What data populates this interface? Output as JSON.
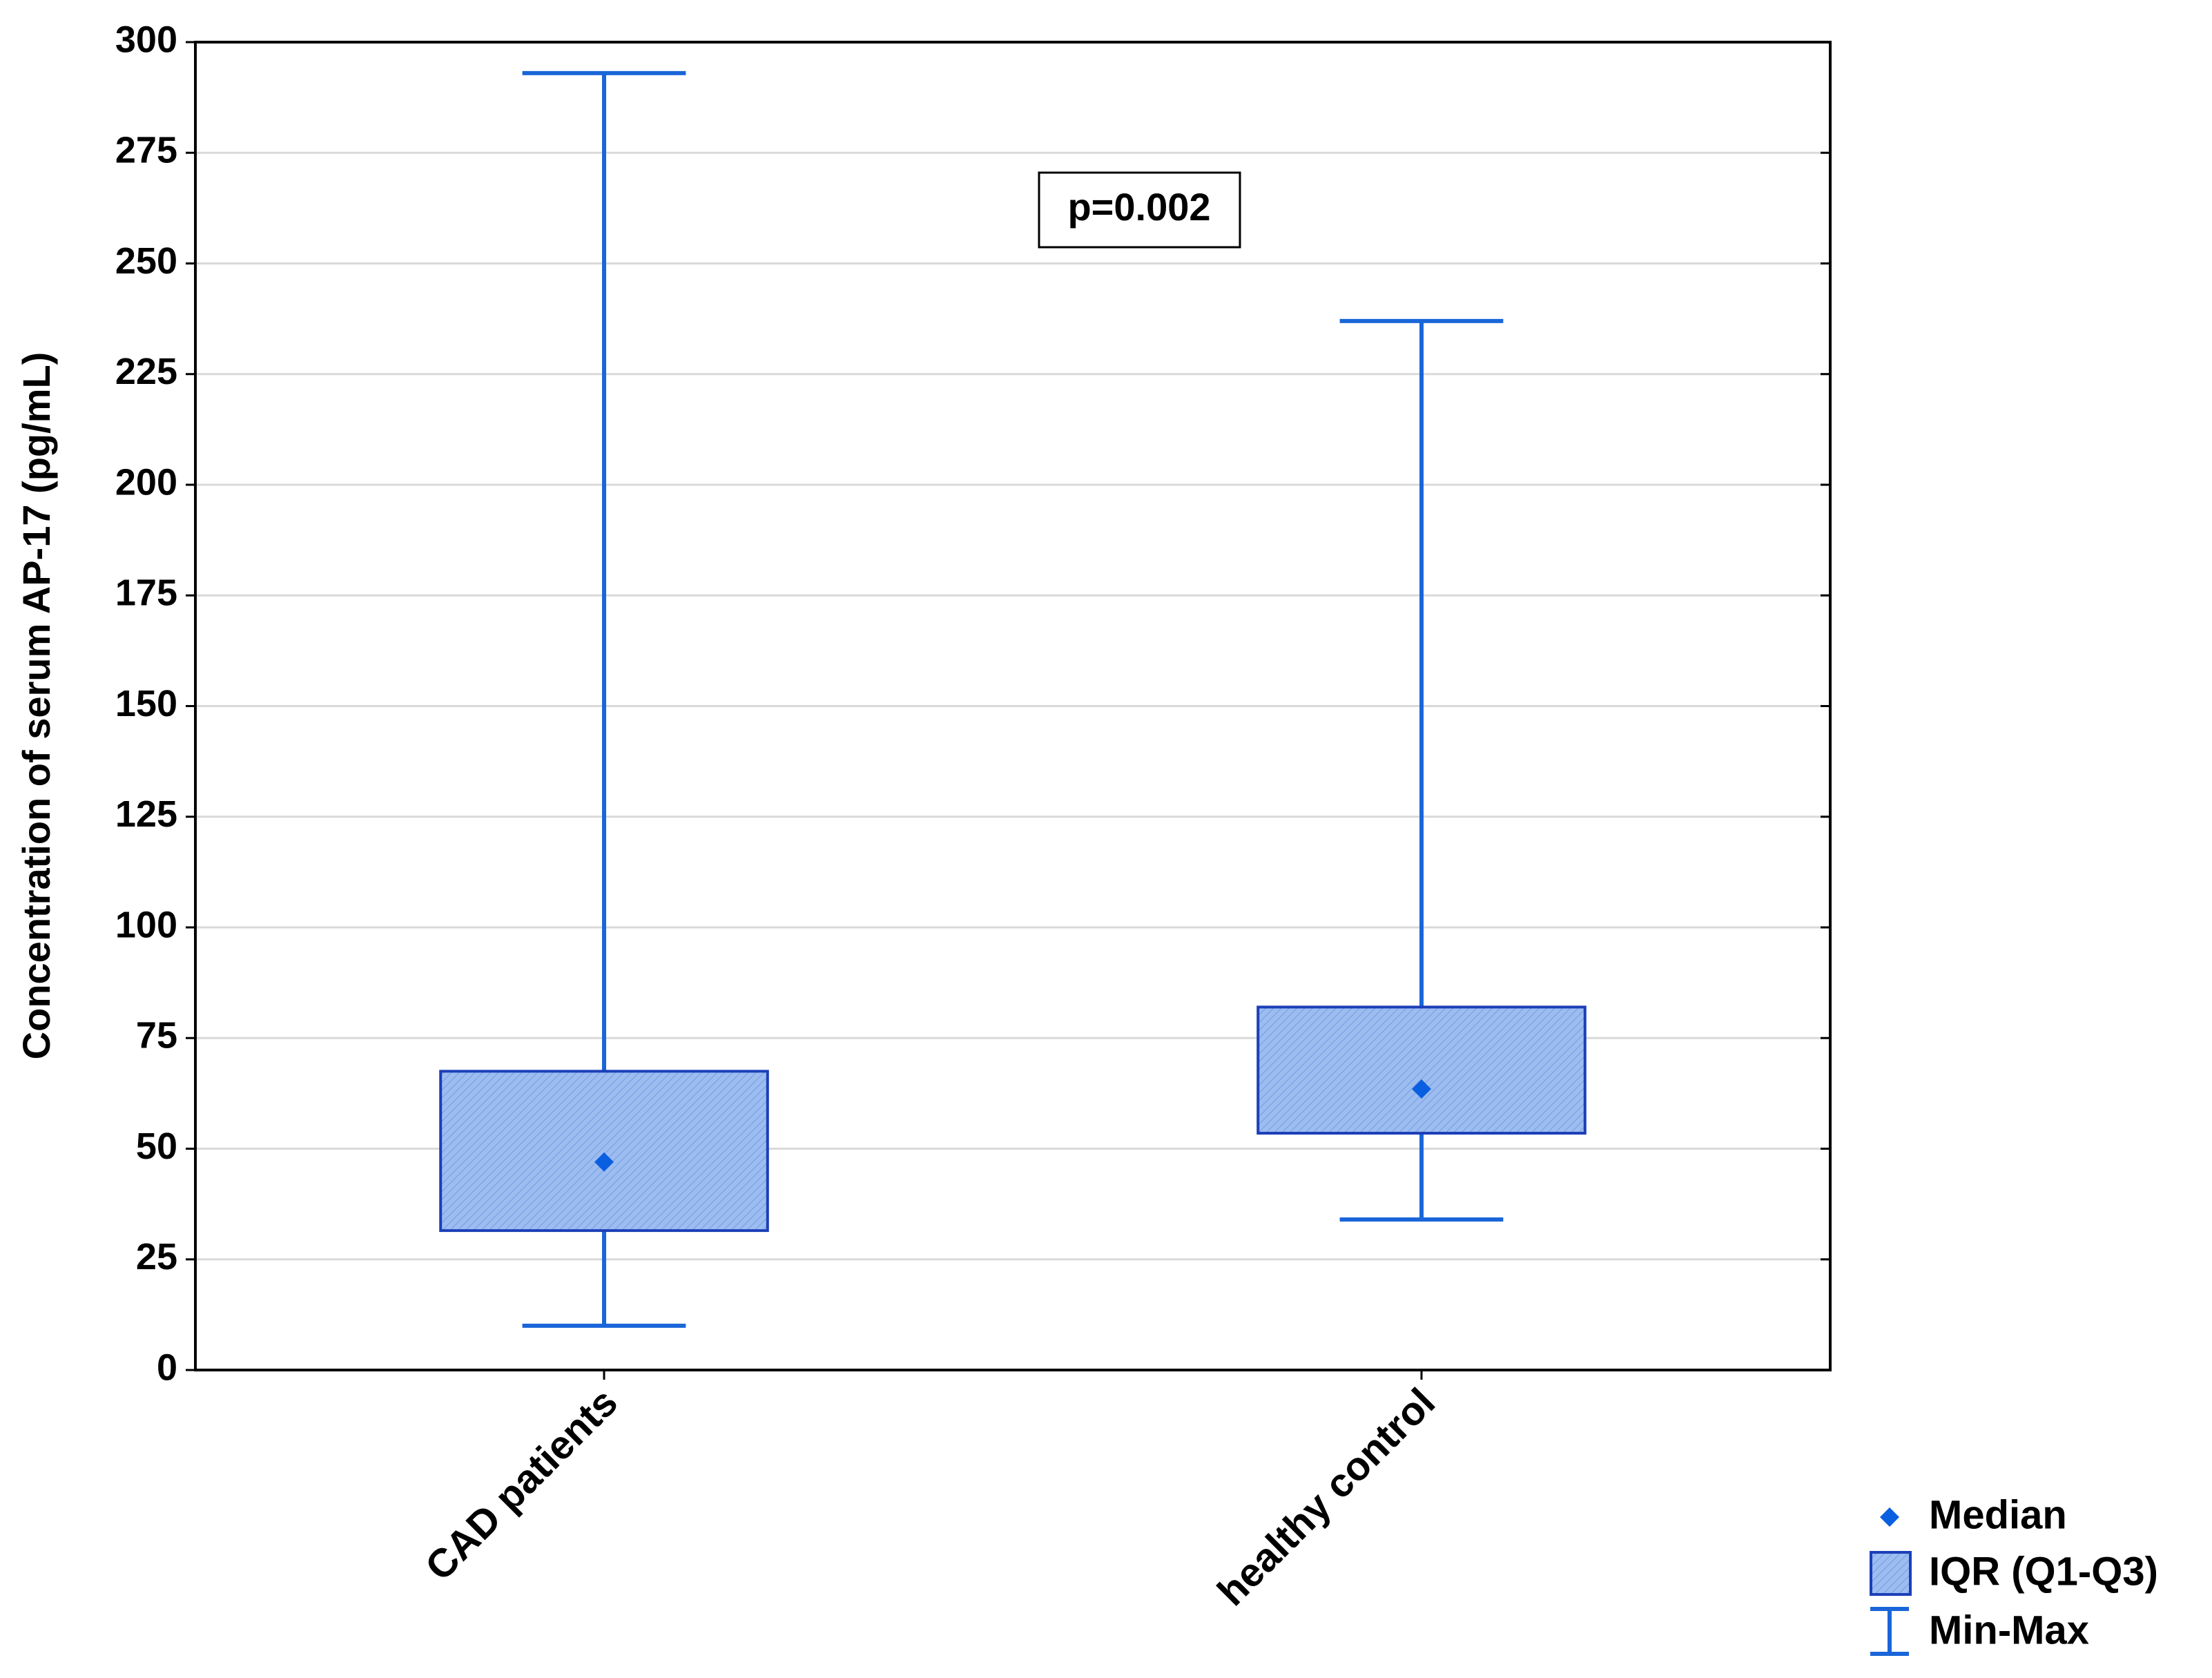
{
  "chart_data": {
    "type": "box",
    "y_label": "Concentration of serum AP-17 (pg/mL)",
    "categories": [
      "CAD patients",
      "healthy control"
    ],
    "min": [
      10,
      34
    ],
    "q1": [
      31.5,
      53.5
    ],
    "median": [
      47,
      63.5
    ],
    "q3": [
      67.5,
      82
    ],
    "max": [
      293,
      237
    ],
    "color": "#1a66d9",
    "box_color": "#9dbdf0",
    "box_edge": "#1c3fb8",
    "ylim": [
      0,
      300
    ],
    "yticks": [
      0,
      25,
      50,
      75,
      100,
      125,
      150,
      175,
      200,
      225,
      250,
      275,
      300
    ],
    "grid": true,
    "annotation": "p=0.002",
    "legend": {
      "median": "Median",
      "iqr": "IQR (Q1-Q3)",
      "range": "Min-Max"
    }
  }
}
